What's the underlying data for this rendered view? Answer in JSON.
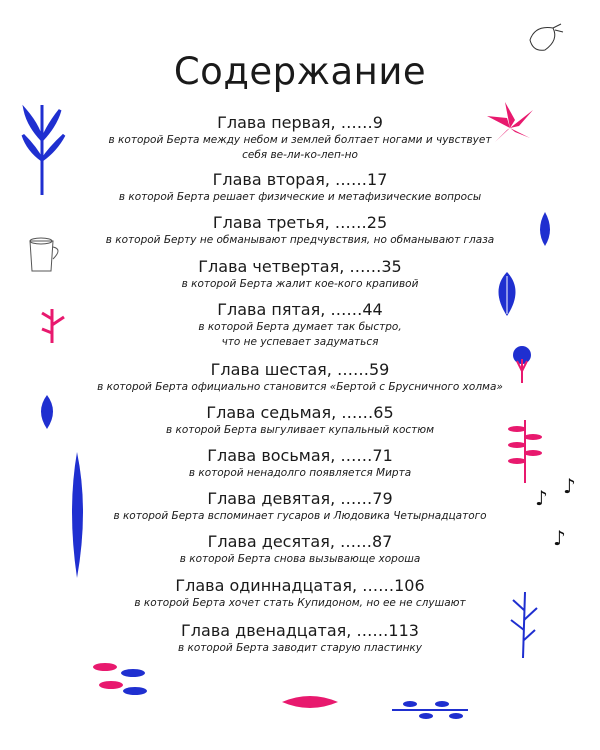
{
  "title": "Содержание",
  "chapters": [
    {
      "heading": "Глава первая, ……9",
      "subtitle_lines": [
        "в которой Берта между небом и землей болтает ногами и чувствует",
        "себя ве-ли-ко-леп-но"
      ]
    },
    {
      "heading": "Глава вторая, ……17",
      "subtitle_lines": [
        "в которой Берта решает физические и метафизические вопросы"
      ]
    },
    {
      "heading": "Глава третья, ……25",
      "subtitle_lines": [
        "в которой Берту не обманывают предчувствия, но обманывают глаза"
      ]
    },
    {
      "heading": "Глава четвертая, ……35",
      "subtitle_lines": [
        "в которой Берта жалит кое-кого крапивой"
      ]
    },
    {
      "heading": "Глава пятая, ……44",
      "subtitle_lines": [
        "в которой Берта думает так быстро,",
        "что не успевает задуматься"
      ]
    },
    {
      "heading": "Глава  шестая, ……59",
      "subtitle_lines": [
        "в которой Берта официально становится «Бертой с Брусничного холма»"
      ]
    },
    {
      "heading": "Глава седьмая, ……65",
      "subtitle_lines": [
        "в которой Берта выгуливает купальный костюм"
      ]
    },
    {
      "heading": "Глава восьмая, ……71",
      "subtitle_lines": [
        "в которой ненадолго появляется Мирта"
      ]
    },
    {
      "heading": "Глава девятая, ……79",
      "subtitle_lines": [
        "в которой Берта вспоминает гусаров и Людовика Четырнадцатого"
      ]
    },
    {
      "heading": "Глава десятая, ……87",
      "subtitle_lines": [
        "в которой Берта снова вызывающе хороша"
      ]
    },
    {
      "heading": "Глава одиннадцатая, ……106",
      "subtitle_lines": [
        "в которой Берта хочет стать Купидоном, но ее не слушают"
      ]
    },
    {
      "heading": "Глава двенадцатая, ……113",
      "subtitle_lines": [
        "в которой Берта заводит старую пластинку"
      ]
    }
  ],
  "colors": {
    "blue": "#1f2fd0",
    "pink": "#e8196e",
    "text": "#1a1a1a"
  }
}
